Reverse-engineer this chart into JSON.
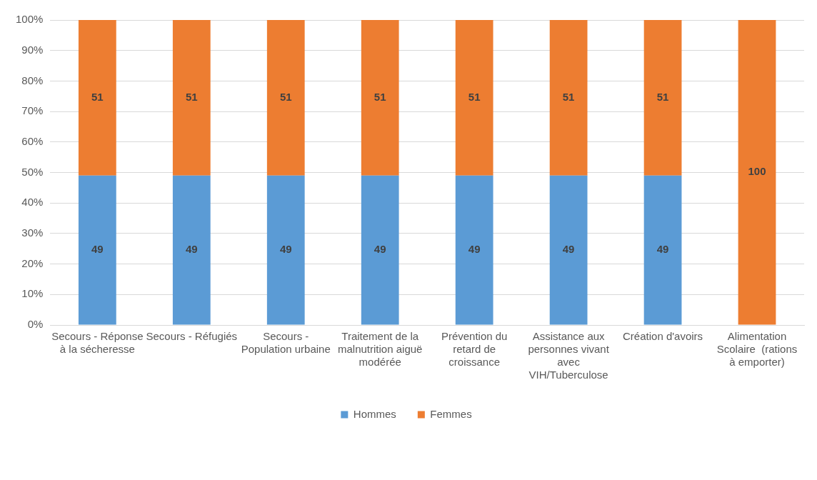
{
  "chart_data": {
    "type": "bar",
    "stacked": true,
    "categories": [
      "Secours - Réponse à la sécheresse",
      "Secours - Réfugiés",
      "Secours - Population urbaine",
      "Traitement de la malnutrition aiguë modérée",
      "Prévention du retard de croissance",
      "Assistance aux personnes vivant avec VIH/Tuberculose",
      "Création d'avoirs",
      "Alimentation Scolaire  (rations à emporter)"
    ],
    "series": [
      {
        "name": "Hommes",
        "color": "#5b9bd5",
        "values": [
          49,
          49,
          49,
          49,
          49,
          49,
          49,
          0
        ],
        "value_labels": [
          "49",
          "49",
          "49",
          "49",
          "49",
          "49",
          "49",
          null
        ]
      },
      {
        "name": "Femmes",
        "color": "#ed7d31",
        "values": [
          51,
          51,
          51,
          51,
          51,
          51,
          51,
          100
        ],
        "value_labels": [
          "51",
          "51",
          "51",
          "51",
          "51",
          "51",
          "51",
          "100"
        ]
      }
    ],
    "ylim": [
      0,
      100
    ],
    "yticks": [
      {
        "value": 0,
        "label": "0%"
      },
      {
        "value": 10,
        "label": "10%"
      },
      {
        "value": 20,
        "label": "20%"
      },
      {
        "value": 30,
        "label": "30%"
      },
      {
        "value": 40,
        "label": "40%"
      },
      {
        "value": 50,
        "label": "50%"
      },
      {
        "value": 60,
        "label": "60%"
      },
      {
        "value": 70,
        "label": "70%"
      },
      {
        "value": 80,
        "label": "80%"
      },
      {
        "value": 90,
        "label": "90%"
      },
      {
        "value": 100,
        "label": "100%"
      }
    ],
    "grid": "y",
    "legend": "bottom"
  }
}
